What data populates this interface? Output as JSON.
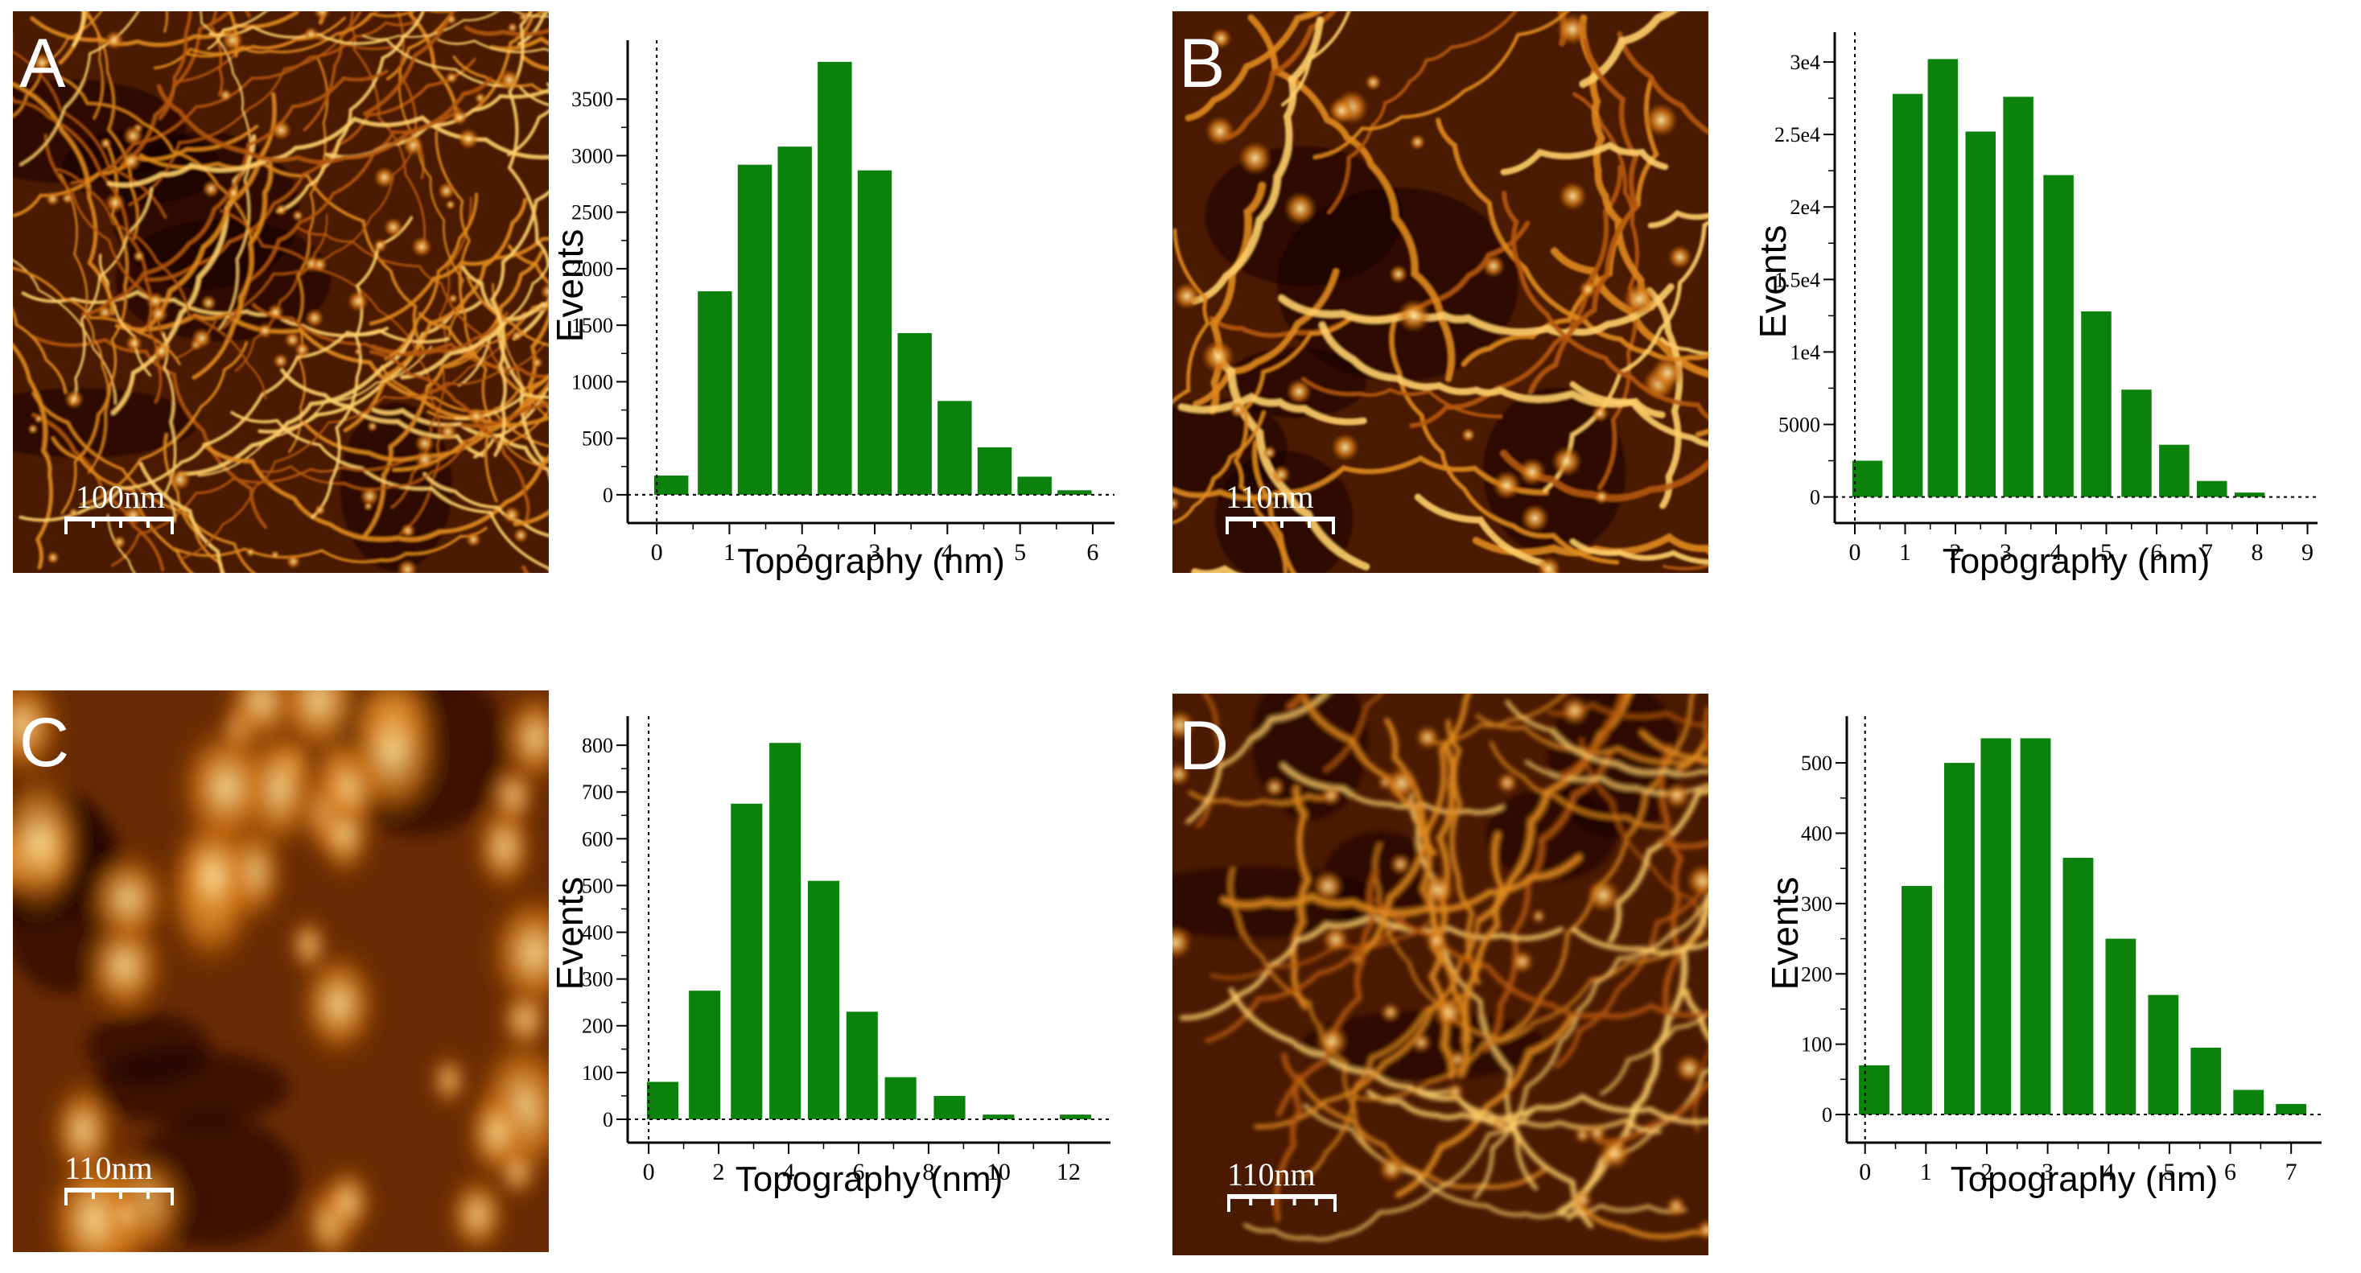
{
  "figure": {
    "panels": [
      {
        "label": "A",
        "scale_bar": "100nm",
        "scale_ticks": 4,
        "seed": 11,
        "style": "dense"
      },
      {
        "label": "B",
        "scale_bar": "110nm",
        "scale_ticks": 4,
        "seed": 23,
        "style": "fibers"
      },
      {
        "label": "C",
        "scale_bar": "110nm",
        "scale_ticks": 4,
        "seed": 37,
        "style": "blobs"
      },
      {
        "label": "D",
        "scale_bar": "110nm",
        "scale_ticks": 5,
        "seed": 53,
        "style": "fuzzy"
      }
    ],
    "colors": {
      "bar": "#0b820b",
      "axis": "#000000",
      "afm_dark": "#1a0500",
      "afm_mid": "#9a4a0a",
      "afm_bright": "#ffe9a6"
    }
  },
  "chart_data": [
    {
      "type": "bar",
      "panel": "A",
      "xlabel": "Topography (nm)",
      "ylabel": "Events",
      "xlim": [
        -0.4,
        6.3
      ],
      "ylim": [
        -250,
        3950
      ],
      "xticks": [
        0,
        1,
        2,
        3,
        4,
        5,
        6
      ],
      "xtick_labels": [
        "0",
        "1",
        "2",
        "3",
        "4",
        "5",
        "6"
      ],
      "yticks": [
        0,
        500,
        1000,
        1500,
        2000,
        2500,
        3000,
        3500
      ],
      "ytick_labels": [
        "0",
        "500",
        "1000",
        "1500",
        "2000",
        "2500",
        "3000",
        "3500"
      ],
      "bar_width": 0.47,
      "x": [
        0.2,
        0.8,
        1.35,
        1.9,
        2.45,
        3.0,
        3.55,
        4.1,
        4.65,
        5.2,
        5.75
      ],
      "values": [
        170,
        1800,
        2920,
        3080,
        3830,
        2870,
        1430,
        830,
        420,
        160,
        40
      ]
    },
    {
      "type": "bar",
      "panel": "B",
      "xlabel": "Topography (nm)",
      "ylabel": "Events",
      "xlim": [
        -0.4,
        9.2
      ],
      "ylim": [
        -1800,
        31500
      ],
      "xticks": [
        0,
        1,
        2,
        3,
        4,
        5,
        6,
        7,
        8,
        9
      ],
      "xtick_labels": [
        "0",
        "1",
        "2",
        "3",
        "4",
        "5",
        "6",
        "7",
        "8",
        "9"
      ],
      "yticks": [
        0,
        5000,
        10000,
        15000,
        20000,
        25000,
        30000
      ],
      "ytick_labels": [
        "0",
        "5000",
        "1e4",
        "1.5e4",
        "2e4",
        "2.5e4",
        "3e4"
      ],
      "bar_width": 0.6,
      "x": [
        0.25,
        1.05,
        1.75,
        2.5,
        3.25,
        4.05,
        4.8,
        5.6,
        6.35,
        7.1,
        7.85
      ],
      "values": [
        2500,
        27800,
        30200,
        25200,
        27600,
        22200,
        12800,
        7400,
        3600,
        1100,
        300
      ]
    },
    {
      "type": "bar",
      "panel": "C",
      "xlabel": "Topography (nm)",
      "ylabel": "Events",
      "xlim": [
        -0.6,
        13.2
      ],
      "ylim": [
        -50,
        845
      ],
      "xticks": [
        0,
        2,
        4,
        6,
        8,
        10,
        12
      ],
      "xtick_labels": [
        "0",
        "2",
        "4",
        "6",
        "8",
        "10",
        "12"
      ],
      "yticks": [
        0,
        100,
        200,
        300,
        400,
        500,
        600,
        700,
        800
      ],
      "ytick_labels": [
        "0",
        "100",
        "200",
        "300",
        "400",
        "500",
        "600",
        "700",
        "800"
      ],
      "bar_width": 0.9,
      "x": [
        0.4,
        1.6,
        2.8,
        3.9,
        5.0,
        6.1,
        7.2,
        8.6,
        10.0,
        12.2
      ],
      "values": [
        80,
        275,
        675,
        805,
        510,
        230,
        90,
        50,
        10,
        10
      ]
    },
    {
      "type": "bar",
      "panel": "D",
      "xlabel": "Topography (nm)",
      "ylabel": "Events",
      "xlim": [
        -0.3,
        7.5
      ],
      "ylim": [
        -40,
        555
      ],
      "xticks": [
        0,
        1,
        2,
        3,
        4,
        5,
        6,
        7
      ],
      "xtick_labels": [
        "0",
        "1",
        "2",
        "3",
        "4",
        "5",
        "6",
        "7"
      ],
      "yticks": [
        0,
        100,
        200,
        300,
        400,
        500
      ],
      "ytick_labels": [
        "0",
        "100",
        "200",
        "300",
        "400",
        "500"
      ],
      "bar_width": 0.5,
      "x": [
        0.15,
        0.85,
        1.55,
        2.15,
        2.8,
        3.5,
        4.2,
        4.9,
        5.6,
        6.3,
        7.0
      ],
      "values": [
        70,
        325,
        500,
        535,
        535,
        365,
        250,
        170,
        95,
        35,
        15
      ]
    }
  ]
}
